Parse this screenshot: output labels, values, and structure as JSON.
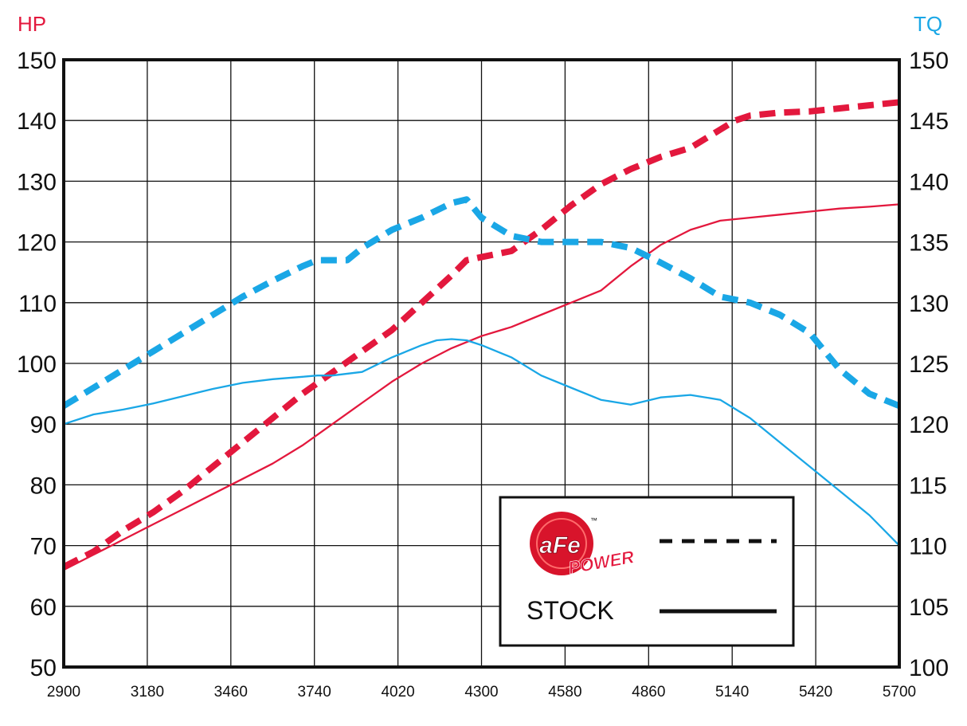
{
  "chart_data": {
    "type": "line",
    "x_ticks": [
      "2900",
      "3180",
      "3460",
      "3740",
      "4020",
      "4300",
      "4580",
      "4860",
      "5140",
      "5420",
      "5700"
    ],
    "xlim": [
      2900,
      5700
    ],
    "y_left": {
      "label": "HP",
      "ticks": [
        "150",
        "140",
        "130",
        "120",
        "110",
        "100",
        "90",
        "80",
        "70",
        "60",
        "50"
      ],
      "range": [
        50,
        150
      ],
      "color": "#e3183d"
    },
    "y_right": {
      "label": "TQ",
      "ticks": [
        "150",
        "145",
        "140",
        "135",
        "130",
        "125",
        "120",
        "115",
        "110",
        "105",
        "100"
      ],
      "range": [
        100,
        150
      ],
      "color": "#1aa7e6"
    },
    "grid": true,
    "legend": {
      "position": "bottom-right",
      "logo_text": "aFe",
      "logo_subtext": "POWER",
      "logo_tm": "™",
      "stock_label": "STOCK",
      "afe_style": "dashed",
      "stock_style": "solid"
    },
    "series": [
      {
        "id": "hp_afe",
        "axis": "left",
        "color": "#e3183d",
        "style": "dashed",
        "points": [
          [
            2900,
            66.5
          ],
          [
            3000,
            69
          ],
          [
            3100,
            72.5
          ],
          [
            3200,
            75.5
          ],
          [
            3300,
            79
          ],
          [
            3400,
            83
          ],
          [
            3500,
            87
          ],
          [
            3600,
            91
          ],
          [
            3700,
            95
          ],
          [
            3800,
            98.5
          ],
          [
            3900,
            102
          ],
          [
            4000,
            105.5
          ],
          [
            4100,
            110
          ],
          [
            4200,
            114.5
          ],
          [
            4250,
            117
          ],
          [
            4300,
            117.5
          ],
          [
            4400,
            118.5
          ],
          [
            4500,
            122
          ],
          [
            4600,
            126
          ],
          [
            4700,
            129.5
          ],
          [
            4800,
            132
          ],
          [
            4900,
            134
          ],
          [
            5000,
            135.5
          ],
          [
            5100,
            138.5
          ],
          [
            5150,
            140
          ],
          [
            5200,
            140.8
          ],
          [
            5300,
            141.3
          ],
          [
            5400,
            141.5
          ],
          [
            5500,
            142
          ],
          [
            5600,
            142.5
          ],
          [
            5700,
            143
          ]
        ]
      },
      {
        "id": "hp_stock",
        "axis": "left",
        "color": "#e3183d",
        "style": "solid",
        "points": [
          [
            2900,
            66
          ],
          [
            3000,
            68.5
          ],
          [
            3100,
            71
          ],
          [
            3200,
            73.5
          ],
          [
            3300,
            76
          ],
          [
            3400,
            78.5
          ],
          [
            3500,
            81
          ],
          [
            3600,
            83.5
          ],
          [
            3700,
            86.5
          ],
          [
            3800,
            90
          ],
          [
            3900,
            93.5
          ],
          [
            4000,
            97
          ],
          [
            4100,
            100
          ],
          [
            4200,
            102.5
          ],
          [
            4300,
            104.5
          ],
          [
            4400,
            106
          ],
          [
            4500,
            108
          ],
          [
            4600,
            110
          ],
          [
            4700,
            112
          ],
          [
            4800,
            116
          ],
          [
            4900,
            119.5
          ],
          [
            5000,
            122
          ],
          [
            5100,
            123.5
          ],
          [
            5200,
            124
          ],
          [
            5300,
            124.5
          ],
          [
            5400,
            125
          ],
          [
            5500,
            125.5
          ],
          [
            5600,
            125.8
          ],
          [
            5700,
            126.2
          ]
        ]
      },
      {
        "id": "tq_afe",
        "axis": "right",
        "color": "#1aa7e6",
        "style": "dashed",
        "points": [
          [
            2900,
            121.5
          ],
          [
            3000,
            123
          ],
          [
            3100,
            124.5
          ],
          [
            3200,
            126
          ],
          [
            3300,
            127.5
          ],
          [
            3400,
            129
          ],
          [
            3500,
            130.5
          ],
          [
            3600,
            131.8
          ],
          [
            3700,
            133
          ],
          [
            3750,
            133.5
          ],
          [
            3850,
            133.5
          ],
          [
            3900,
            134.5
          ],
          [
            4000,
            136
          ],
          [
            4100,
            137
          ],
          [
            4200,
            138.2
          ],
          [
            4250,
            138.5
          ],
          [
            4300,
            137
          ],
          [
            4400,
            135.5
          ],
          [
            4500,
            135
          ],
          [
            4600,
            135
          ],
          [
            4700,
            135
          ],
          [
            4800,
            134.5
          ],
          [
            4900,
            133.3
          ],
          [
            5000,
            132
          ],
          [
            5100,
            130.5
          ],
          [
            5200,
            130
          ],
          [
            5300,
            129
          ],
          [
            5400,
            127.5
          ],
          [
            5500,
            124.5
          ],
          [
            5600,
            122.5
          ],
          [
            5700,
            121.5
          ]
        ]
      },
      {
        "id": "tq_stock",
        "axis": "right",
        "color": "#1aa7e6",
        "style": "solid",
        "points": [
          [
            2900,
            120
          ],
          [
            3000,
            120.8
          ],
          [
            3100,
            121.2
          ],
          [
            3200,
            121.7
          ],
          [
            3300,
            122.3
          ],
          [
            3400,
            122.9
          ],
          [
            3500,
            123.4
          ],
          [
            3600,
            123.7
          ],
          [
            3700,
            123.9
          ],
          [
            3750,
            124
          ],
          [
            3800,
            124
          ],
          [
            3900,
            124.3
          ],
          [
            4000,
            125.5
          ],
          [
            4100,
            126.5
          ],
          [
            4150,
            126.9
          ],
          [
            4200,
            127
          ],
          [
            4250,
            126.9
          ],
          [
            4300,
            126.5
          ],
          [
            4400,
            125.5
          ],
          [
            4500,
            124
          ],
          [
            4600,
            123
          ],
          [
            4700,
            122
          ],
          [
            4750,
            121.8
          ],
          [
            4800,
            121.6
          ],
          [
            4900,
            122.2
          ],
          [
            5000,
            122.4
          ],
          [
            5100,
            122
          ],
          [
            5200,
            120.5
          ],
          [
            5300,
            118.5
          ],
          [
            5400,
            116.5
          ],
          [
            5500,
            114.5
          ],
          [
            5600,
            112.5
          ],
          [
            5700,
            110
          ]
        ]
      }
    ]
  }
}
